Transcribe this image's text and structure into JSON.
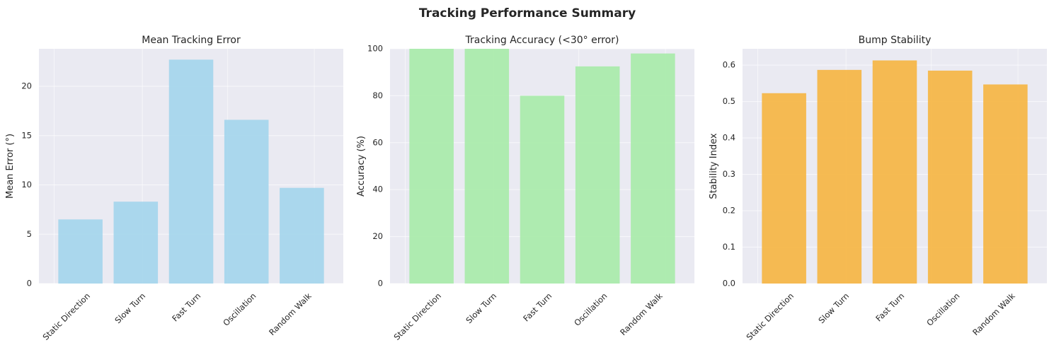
{
  "figure": {
    "title": "Tracking Performance Summary"
  },
  "style": {
    "plot_bg": "#eaeaf2",
    "grid_color": "#ffffff",
    "text_color": "#262626"
  },
  "chart_data": [
    {
      "type": "bar",
      "title": "Mean Tracking Error",
      "xlabel": "",
      "ylabel": "Mean Error (°)",
      "categories": [
        "Static Direction",
        "Slow Turn",
        "Fast Turn",
        "Oscillation",
        "Random Walk"
      ],
      "values": [
        6.5,
        8.3,
        22.7,
        16.6,
        9.7
      ],
      "ylim": [
        0,
        23.8
      ],
      "yticks": [
        0,
        5,
        10,
        15,
        20
      ],
      "ytick_labels": [
        "0",
        "5",
        "10",
        "15",
        "20"
      ],
      "color": "#a6d6ec",
      "grid": true
    },
    {
      "type": "bar",
      "title": "Tracking Accuracy (<30° error)",
      "xlabel": "",
      "ylabel": "Accuracy (%)",
      "categories": [
        "Static Direction",
        "Slow Turn",
        "Fast Turn",
        "Oscillation",
        "Random Walk"
      ],
      "values": [
        100,
        100,
        80,
        92.5,
        98
      ],
      "ylim": [
        0,
        100
      ],
      "yticks": [
        0,
        20,
        40,
        60,
        80,
        100
      ],
      "ytick_labels": [
        "0",
        "20",
        "40",
        "60",
        "80",
        "100"
      ],
      "color": "#abebac",
      "grid": true
    },
    {
      "type": "bar",
      "title": "Bump Stability",
      "xlabel": "",
      "ylabel": "Stability Index",
      "categories": [
        "Static Direction",
        "Slow Turn",
        "Fast Turn",
        "Oscillation",
        "Random Walk"
      ],
      "values": [
        0.523,
        0.587,
        0.613,
        0.585,
        0.547
      ],
      "ylim": [
        0,
        0.645
      ],
      "yticks": [
        0,
        0.1,
        0.2,
        0.3,
        0.4,
        0.5,
        0.6
      ],
      "ytick_labels": [
        "0.0",
        "0.1",
        "0.2",
        "0.3",
        "0.4",
        "0.5",
        "0.6"
      ],
      "color": "#f6b749",
      "grid": true
    }
  ]
}
